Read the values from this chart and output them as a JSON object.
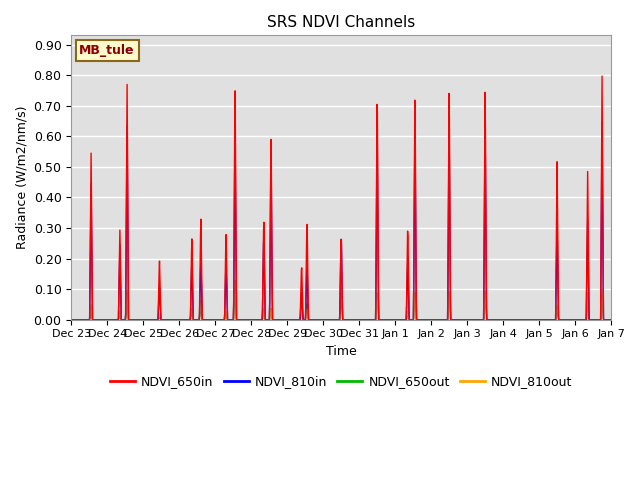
{
  "title": "SRS NDVI Channels",
  "xlabel": "Time",
  "ylabel": "Radiance (W/m2/nm/s)",
  "ylim": [
    0.0,
    0.93
  ],
  "yticks": [
    0.0,
    0.1,
    0.2,
    0.3,
    0.4,
    0.5,
    0.6,
    0.7,
    0.8,
    0.9
  ],
  "annotation_text": "MB_tule",
  "annotation_color": "#8B0000",
  "annotation_bg": "#FFFACD",
  "annotation_border": "#8B6914",
  "colors": {
    "NDVI_650in": "#FF0000",
    "NDVI_810in": "#0000FF",
    "NDVI_650out": "#00BB00",
    "NDVI_810out": "#FFA500"
  },
  "bg_color": "#E0E0E0",
  "fig_bg_color": "#FFFFFF",
  "xtick_labels": [
    "Dec 23",
    "Dec 24",
    "Dec 25",
    "Dec 26",
    "Dec 27",
    "Dec 28",
    "Dec 29",
    "Dec 30",
    "Dec 31",
    "Jan 1",
    "Jan 2",
    "Jan 3",
    "Jan 4",
    "Jan 5",
    "Jan 6",
    "Jan 7"
  ]
}
